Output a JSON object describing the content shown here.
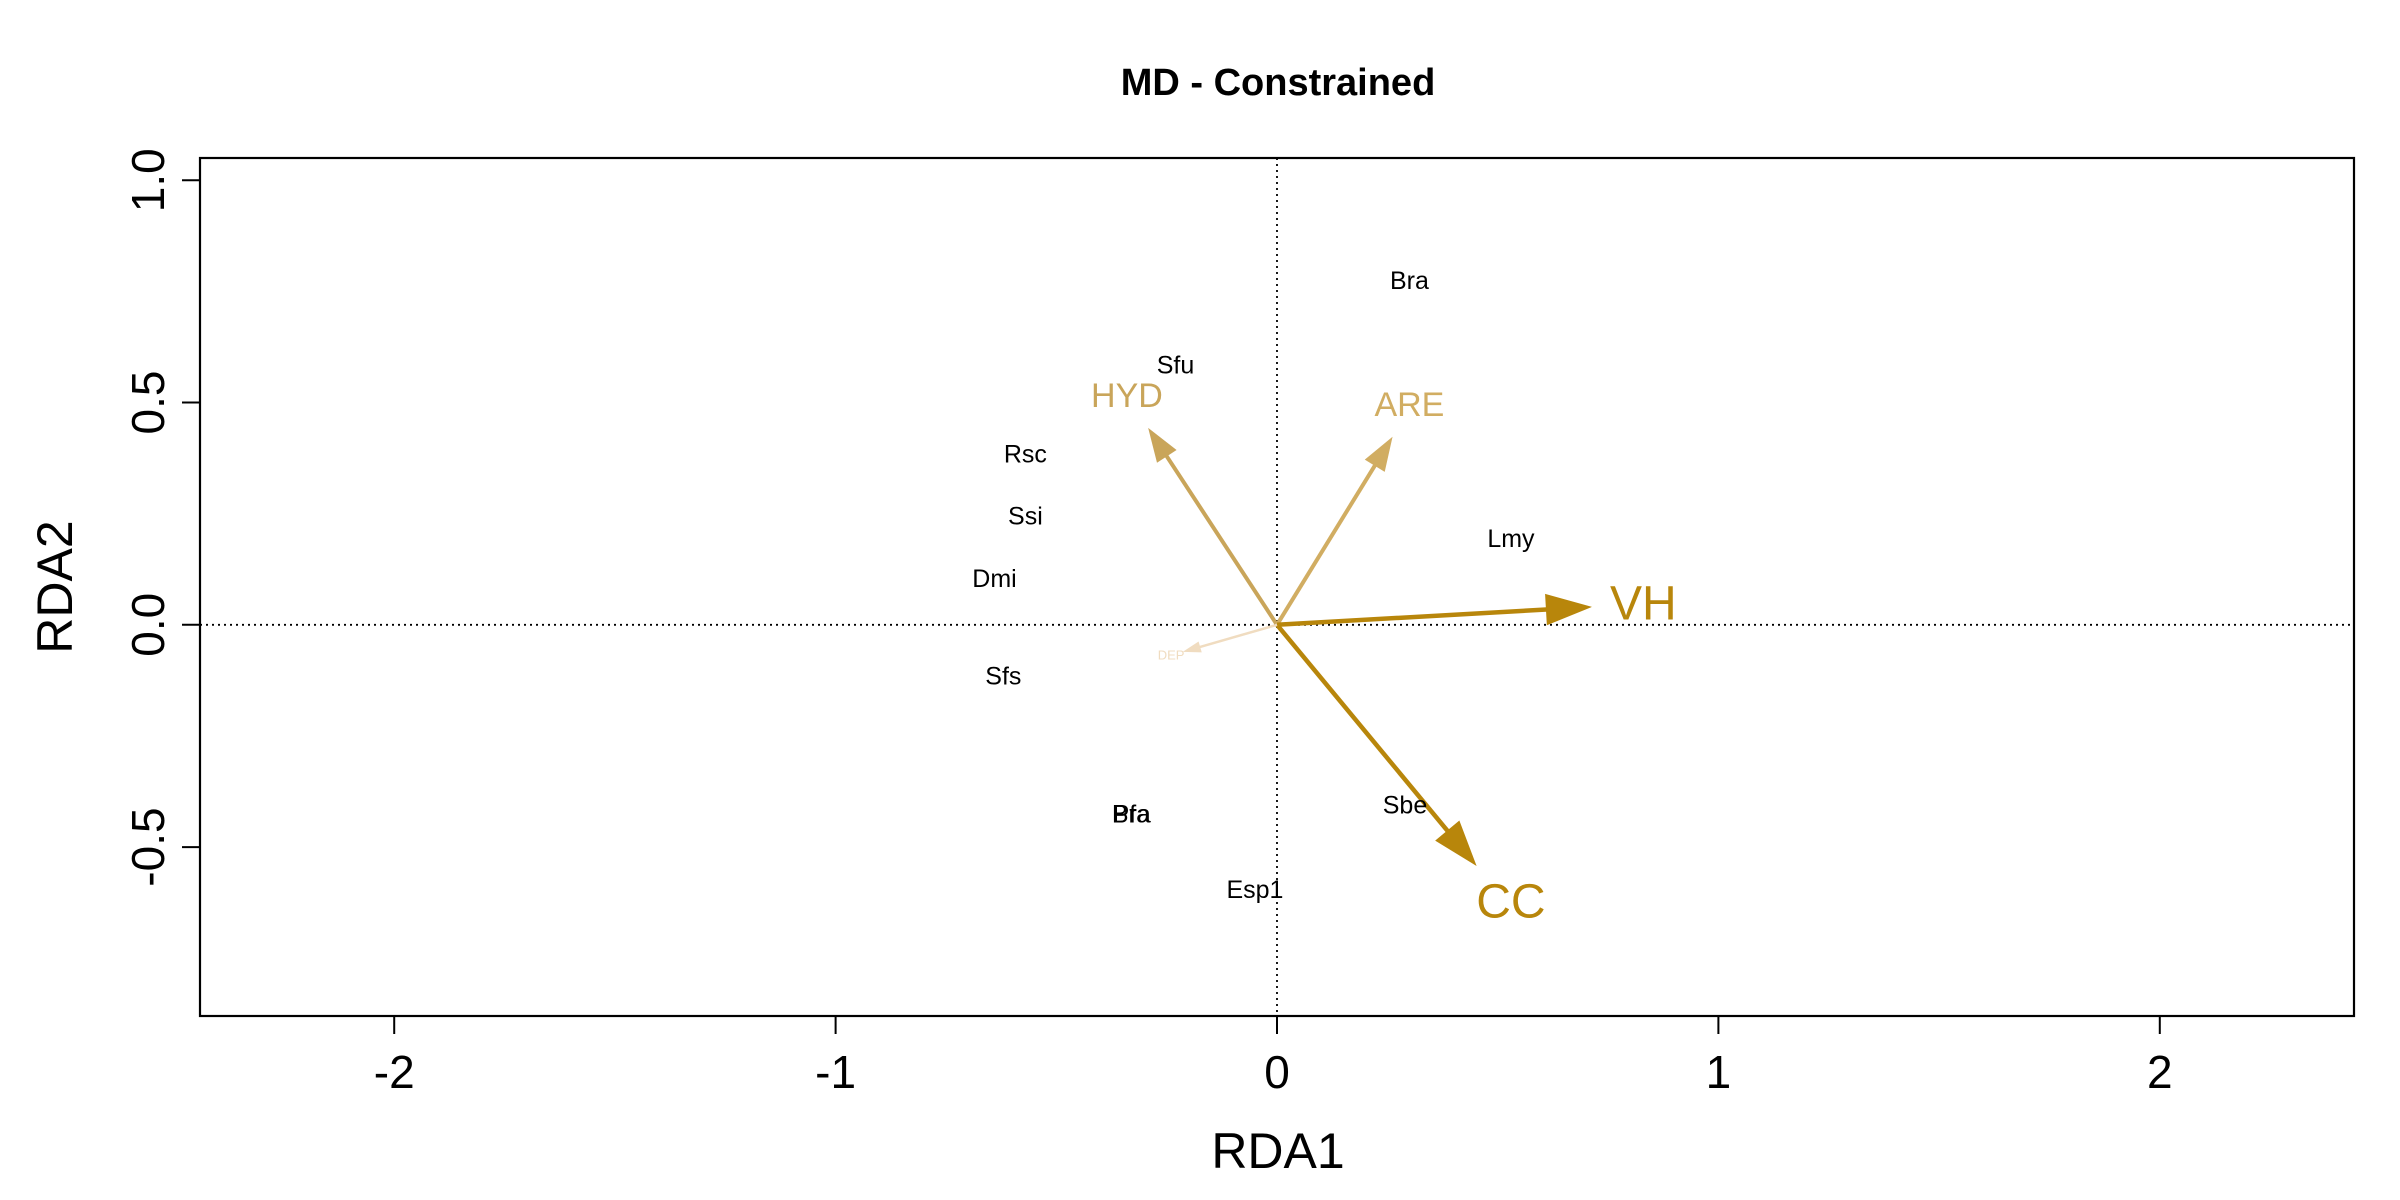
{
  "chart_data": {
    "type": "scatter",
    "title": "MD - Constrained",
    "xlabel": "RDA1",
    "ylabel": "RDA2",
    "xlim": [
      -2.44,
      2.44
    ],
    "ylim": [
      -0.88,
      1.05
    ],
    "x_ticks": [
      -2,
      -1,
      0,
      1,
      2
    ],
    "x_tick_labels": [
      "-2",
      "-1",
      "0",
      "1",
      "2"
    ],
    "y_ticks": [
      -0.5,
      0,
      0.5,
      1
    ],
    "y_tick_labels": [
      "-0.5",
      "0.0",
      "0.5",
      "1.0"
    ],
    "reference_lines": [
      {
        "axis": "x",
        "value": 0,
        "style": "dotted"
      },
      {
        "axis": "y",
        "value": 0,
        "style": "dotted"
      }
    ],
    "species": [
      {
        "label": "Bra",
        "x": 0.3,
        "y": 0.77
      },
      {
        "label": "Sfu",
        "x": -0.23,
        "y": 0.58
      },
      {
        "label": "Rsc",
        "x": -0.57,
        "y": 0.38
      },
      {
        "label": "Ssi",
        "x": -0.57,
        "y": 0.24
      },
      {
        "label": "Lmy",
        "x": 0.53,
        "y": 0.19
      },
      {
        "label": "Dmi",
        "x": -0.64,
        "y": 0.1
      },
      {
        "label": "Sfs",
        "x": -0.62,
        "y": -0.12
      },
      {
        "label": "Bra",
        "x": -0.33,
        "y": -0.43
      },
      {
        "label": "Pfa",
        "x": -0.33,
        "y": -0.43
      },
      {
        "label": "Sbe",
        "x": 0.29,
        "y": -0.41
      },
      {
        "label": "Esp1",
        "x": -0.05,
        "y": -0.6
      }
    ],
    "vectors": [
      {
        "label": "HYD",
        "x": -0.29,
        "y": 0.44,
        "label_x": -0.34,
        "label_y": 0.51,
        "color": "#c9a55a",
        "size": "medium"
      },
      {
        "label": "ARE",
        "x": 0.26,
        "y": 0.42,
        "label_x": 0.3,
        "label_y": 0.49,
        "color": "#d1ad62",
        "size": "medium"
      },
      {
        "label": "VH",
        "x": 0.71,
        "y": 0.04,
        "label_x": 0.83,
        "label_y": 0.04,
        "color": "#b8860b",
        "size": "large"
      },
      {
        "label": "CC",
        "x": 0.45,
        "y": -0.54,
        "label_x": 0.53,
        "label_y": -0.63,
        "color": "#b8860b",
        "size": "large"
      },
      {
        "label": "DEP",
        "x": -0.21,
        "y": -0.06,
        "label_x": -0.24,
        "label_y": -0.07,
        "color": "#f0dcc0",
        "size": "tiny"
      }
    ]
  }
}
